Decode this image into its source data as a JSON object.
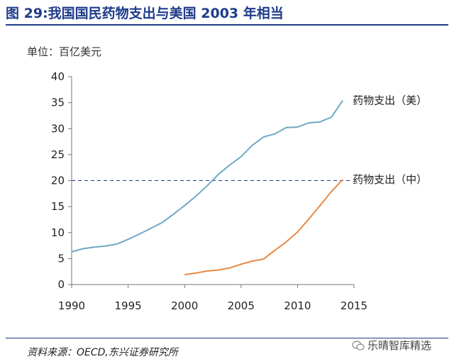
{
  "header": {
    "title": "图 29:我国国民药物支出与美国 2003 年相当",
    "unit": "单位：百亿美元"
  },
  "footer": {
    "source": "资料来源：OECD,东兴证券研究所",
    "watermark": "乐晴智库精选"
  },
  "icons": {
    "watermark_icon": "wechat-icon"
  },
  "colors": {
    "us_line": "#6fa9c6",
    "china_line": "#e98a46",
    "title": "#1f3b8a",
    "reference_line": "#1f3b8a"
  },
  "chart_data": {
    "type": "line",
    "title": "图 29:我国国民药物支出与美国 2003 年相当",
    "ylabel": "单位：百亿美元",
    "xlabel": "",
    "xlim": [
      1990,
      2015
    ],
    "ylim": [
      0,
      40
    ],
    "x_ticks": [
      1990,
      1995,
      2000,
      2005,
      2010,
      2015
    ],
    "y_ticks": [
      0,
      5,
      10,
      15,
      20,
      25,
      30,
      35,
      40
    ],
    "grid": false,
    "reference_line": {
      "y": 20,
      "style": "dashed"
    },
    "series": [
      {
        "name": "药物支出（美）",
        "x": [
          1990,
          1991,
          1992,
          1993,
          1994,
          1995,
          1996,
          1997,
          1998,
          1999,
          2000,
          2001,
          2002,
          2003,
          2004,
          2005,
          2006,
          2007,
          2008,
          2009,
          2010,
          2011,
          2012,
          2013,
          2014
        ],
        "values": [
          6.3,
          6.9,
          7.2,
          7.4,
          7.8,
          8.7,
          9.7,
          10.8,
          11.9,
          13.5,
          15.2,
          17.0,
          19.0,
          21.2,
          23.0,
          24.6,
          26.8,
          28.4,
          29.0,
          30.2,
          30.3,
          31.1,
          31.3,
          32.2,
          35.4
        ]
      },
      {
        "name": "药物支出（中）",
        "x": [
          2000,
          2001,
          2002,
          2003,
          2004,
          2005,
          2006,
          2007,
          2008,
          2009,
          2010,
          2011,
          2012,
          2013,
          2014
        ],
        "values": [
          1.9,
          2.2,
          2.6,
          2.8,
          3.2,
          3.9,
          4.5,
          4.9,
          6.6,
          8.2,
          10.1,
          12.6,
          15.2,
          17.9,
          20.2
        ]
      }
    ]
  }
}
